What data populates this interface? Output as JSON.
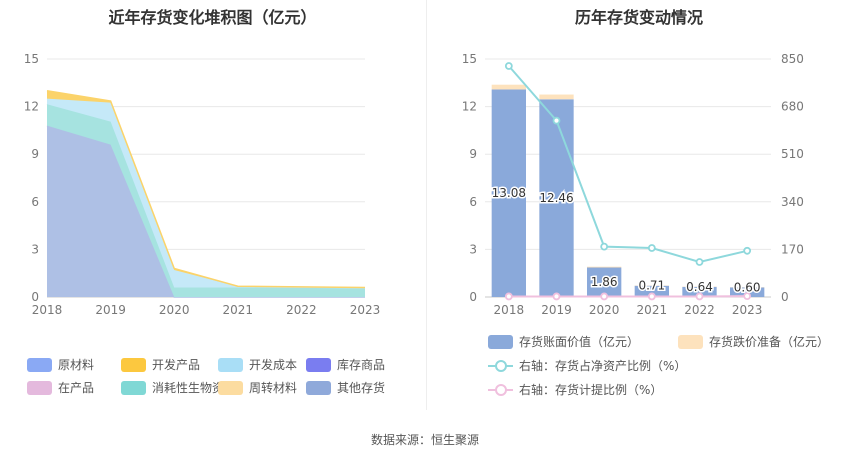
{
  "left": {
    "title": "近年存货变化堆积图（亿元）",
    "legend": [
      {
        "name": "原材料",
        "color": "#8aa9f4"
      },
      {
        "name": "开发产品",
        "color": "#fcc83f"
      },
      {
        "name": "开发成本",
        "color": "#a9def6"
      },
      {
        "name": "库存商品",
        "color": "#7a7df0"
      },
      {
        "name": "在产品",
        "color": "#e4b9dd"
      },
      {
        "name": "消耗性生物资产",
        "color": "#80d8d5"
      },
      {
        "name": "周转材料",
        "color": "#fcdca0"
      },
      {
        "name": "其他存货",
        "color": "#8fa9da"
      }
    ]
  },
  "right": {
    "title": "历年存货变动情况",
    "legend": [
      {
        "name": "存货账面价值（亿元）",
        "color": "#8aa9da",
        "kind": "bar"
      },
      {
        "name": "存货跌价准备（亿元）",
        "color": "#fde2bd",
        "kind": "bar"
      },
      {
        "name": "右轴：存货占净资产比例（%）",
        "color": "#8ed8dc",
        "kind": "line"
      },
      {
        "name": "右轴：存货计提比例（%）",
        "color": "#f0c0de",
        "kind": "line"
      }
    ]
  },
  "source": "数据来源：恒生聚源",
  "chart_data": [
    {
      "type": "area",
      "title": "近年存货变化堆积图（亿元）",
      "x": [
        "2018",
        "2019",
        "2020",
        "2021",
        "2022",
        "2023"
      ],
      "ylim": [
        0,
        15
      ],
      "yticks": [
        "0",
        "3",
        "6",
        "9",
        "12",
        "15"
      ],
      "stacked": true,
      "series": [
        {
          "name": "其他存货",
          "color": "#aec0e5",
          "values": [
            10.8,
            9.6,
            0,
            0,
            0,
            0
          ]
        },
        {
          "name": "消耗性生物资产",
          "color": "#a6e3e0",
          "values": [
            1.35,
            1.45,
            0.6,
            0.6,
            0.58,
            0.55
          ]
        },
        {
          "name": "开发成本",
          "color": "#c5e9f8",
          "values": [
            0.35,
            1.2,
            1.1,
            0.06,
            0.04,
            0.03
          ]
        },
        {
          "name": "开发产品",
          "color": "#fbd36a",
          "values": [
            0.5,
            0.1,
            0.1,
            0.02,
            0.02,
            0.02
          ]
        }
      ]
    },
    {
      "type": "bar",
      "title": "历年存货变动情况",
      "categories": [
        "2018",
        "2019",
        "2020",
        "2021",
        "2022",
        "2023"
      ],
      "ylim": [
        0,
        15
      ],
      "yticks": [
        "0",
        "3",
        "6",
        "9",
        "12",
        "15"
      ],
      "y2lim": [
        0,
        850
      ],
      "y2ticks": [
        "0",
        "170",
        "340",
        "510",
        "680",
        "850"
      ],
      "series": [
        {
          "name": "存货账面价值（亿元）",
          "type": "bar",
          "color": "#8aa9da",
          "values": [
            13.08,
            12.46,
            1.86,
            0.71,
            0.64,
            0.6
          ],
          "labels": [
            "13.08",
            "12.46",
            "1.86",
            "0.71",
            "0.64",
            "0.60"
          ]
        },
        {
          "name": "存货跌价准备（亿元）",
          "type": "bar",
          "color": "#fde2bd",
          "values": [
            0.3,
            0.3,
            0.05,
            0.02,
            0.02,
            0.02
          ]
        },
        {
          "name": "右轴：存货占净资产比例（%）",
          "type": "line",
          "axis": "right",
          "color": "#8ed8dc",
          "values": [
            825,
            630,
            180,
            175,
            125,
            165
          ]
        },
        {
          "name": "右轴：存货计提比例（%）",
          "type": "line",
          "axis": "right",
          "color": "#f0c0de",
          "values": [
            2,
            2,
            2,
            2,
            2,
            3
          ]
        }
      ]
    }
  ]
}
